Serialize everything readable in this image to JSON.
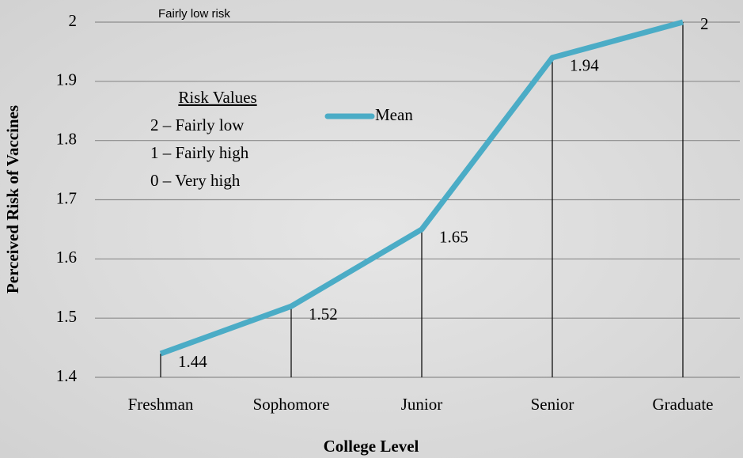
{
  "chart_data": {
    "type": "line",
    "x_label": "College Level",
    "y_label": "Perceived Risk of Vaccines",
    "categories": [
      "Freshman",
      "Sophomore",
      "Junior",
      "Senior",
      "Graduate"
    ],
    "series": [
      {
        "name": "Mean",
        "color": "#4bacc6",
        "values": [
          1.44,
          1.52,
          1.65,
          1.94,
          2
        ]
      }
    ],
    "ylim": [
      1.4,
      2
    ],
    "yticks": [
      1.4,
      1.5,
      1.6,
      1.7,
      1.8,
      1.9,
      2
    ],
    "grid": true,
    "drop_lines": true,
    "data_labels": true,
    "annotation": "Fairly low risk",
    "risk_values": {
      "title": "Risk Values",
      "lines": [
        "2 – Fairly low",
        "1 – Fairly high",
        "0 – Very high"
      ]
    }
  }
}
